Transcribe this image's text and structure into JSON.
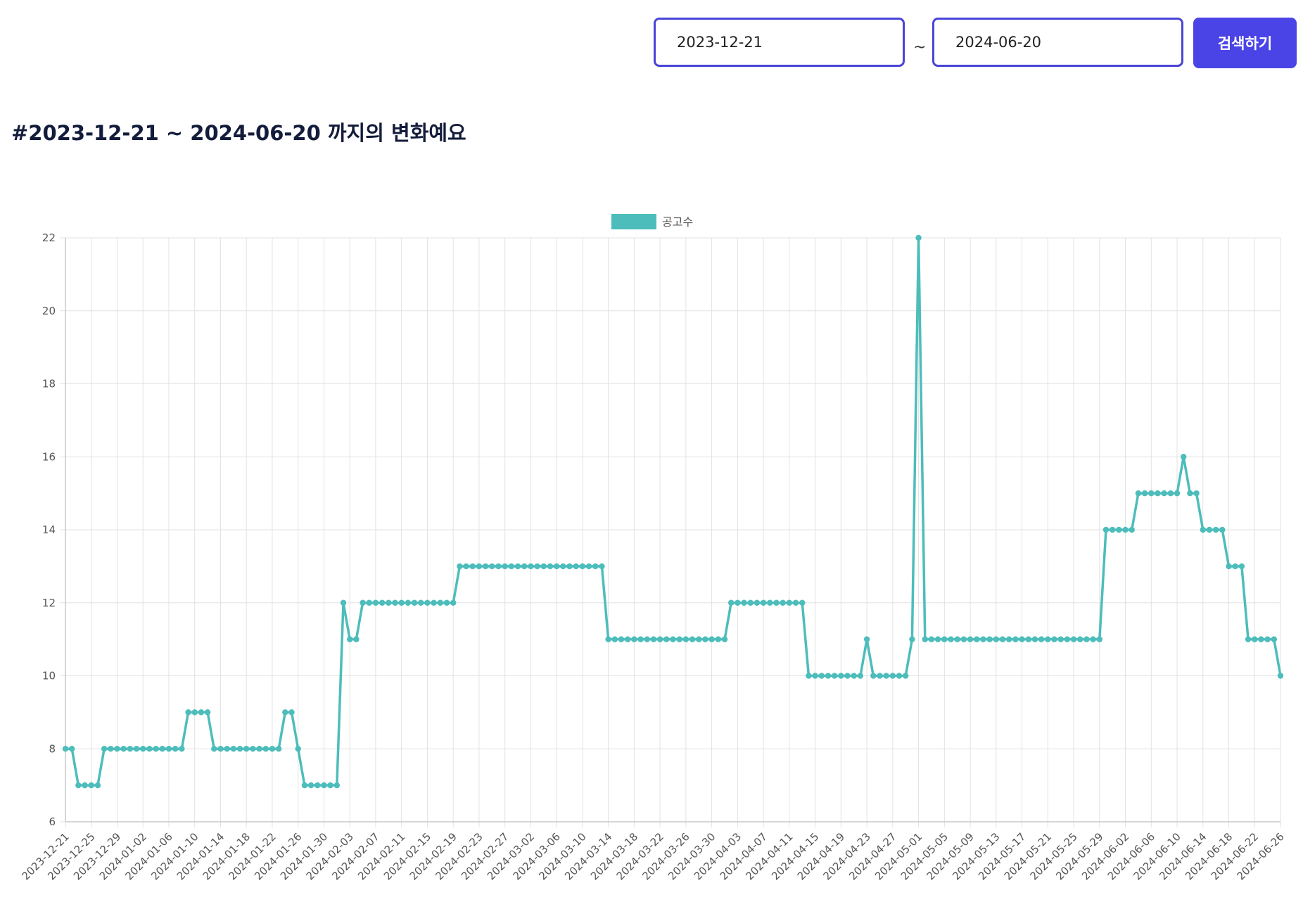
{
  "search": {
    "start_date": "2023-12-21",
    "end_date": "2024-06-20",
    "separator": "~",
    "button_label": "검색하기"
  },
  "page_title": "#2023-12-21 ~ 2024-06-20 까지의 변화예요",
  "colors": {
    "accent": "#4a44e6",
    "series": "#4dbdbb",
    "title": "#131c3b"
  },
  "chart_data": {
    "type": "line",
    "legend_position": "top-center",
    "grid": true,
    "x_start": "2023-12-21",
    "x_end": "2024-06-20",
    "x_tick_every_days": 4,
    "ylim": [
      6,
      22
    ],
    "yticks": [
      6,
      8,
      10,
      12,
      14,
      16,
      18,
      20,
      22
    ],
    "series": [
      {
        "name": "공고수",
        "values": [
          8,
          8,
          7,
          7,
          7,
          7,
          8,
          8,
          8,
          8,
          8,
          8,
          8,
          8,
          8,
          8,
          8,
          8,
          8,
          9,
          9,
          9,
          9,
          8,
          8,
          8,
          8,
          8,
          8,
          8,
          8,
          8,
          8,
          8,
          9,
          9,
          8,
          7,
          7,
          7,
          7,
          7,
          7,
          12,
          11,
          11,
          12,
          12,
          12,
          12,
          12,
          12,
          12,
          12,
          12,
          12,
          12,
          12,
          12,
          12,
          12,
          13,
          13,
          13,
          13,
          13,
          13,
          13,
          13,
          13,
          13,
          13,
          13,
          13,
          13,
          13,
          13,
          13,
          13,
          13,
          13,
          13,
          13,
          13,
          11,
          11,
          11,
          11,
          11,
          11,
          11,
          11,
          11,
          11,
          11,
          11,
          11,
          11,
          11,
          11,
          11,
          11,
          11,
          12,
          12,
          12,
          12,
          12,
          12,
          12,
          12,
          12,
          12,
          12,
          12,
          10,
          10,
          10,
          10,
          10,
          10,
          10,
          10,
          10,
          11,
          10,
          10,
          10,
          10,
          10,
          10,
          11,
          22,
          11,
          11,
          11,
          11,
          11,
          11,
          11,
          11,
          11,
          11,
          11,
          11,
          11,
          11,
          11,
          11,
          11,
          11,
          11,
          11,
          11,
          11,
          11,
          11,
          11,
          11,
          11,
          11,
          14,
          14,
          14,
          14,
          14,
          15,
          15,
          15,
          15,
          15,
          15,
          15,
          16,
          15,
          15,
          14,
          14,
          14,
          14,
          13,
          13,
          13,
          11,
          11,
          11,
          11,
          11,
          10
        ]
      }
    ]
  }
}
